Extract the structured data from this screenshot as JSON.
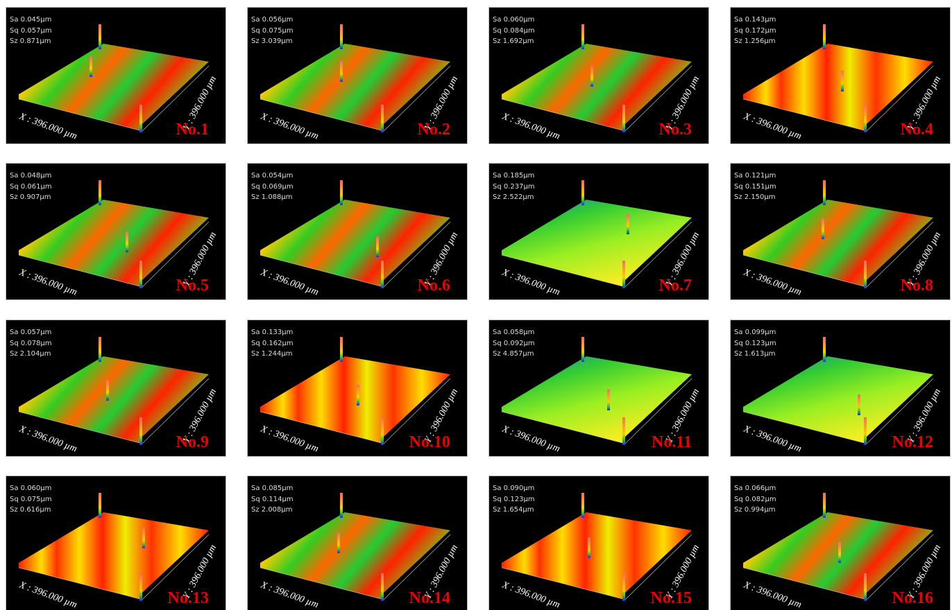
{
  "x_axis_label": "X : 396.000 µm",
  "y_axis_label": "Y : 396.000 µm",
  "panels": [
    {
      "label": "No.1",
      "sa": "Sa 0.045µm",
      "sq": "Sq 0.057µm",
      "sz": "Sz 0.871µm"
    },
    {
      "label": "No.2",
      "sa": "Sa 0.056µm",
      "sq": "Sq 0.075µm",
      "sz": "Sz 3.039µm"
    },
    {
      "label": "No.3",
      "sa": "Sa 0.060µm",
      "sq": "Sq 0.084µm",
      "sz": "Sz 1.692µm"
    },
    {
      "label": "No.4",
      "sa": "Sa 0.143µm",
      "sq": "Sq 0.172µm",
      "sz": "Sz 1.256µm"
    },
    {
      "label": "No.5",
      "sa": "Sa 0.048µm",
      "sq": "Sq 0.061µm",
      "sz": "Sz 0.907µm"
    },
    {
      "label": "No.6",
      "sa": "Sa 0.054µm",
      "sq": "Sq 0.069µm",
      "sz": "Sz 1.088µm"
    },
    {
      "label": "No.7",
      "sa": "Sa 0.185µm",
      "sq": "Sq 0.237µm",
      "sz": "Sz 2.522µm"
    },
    {
      "label": "No.8",
      "sa": "Sa 0.121µm",
      "sq": "Sq 0.151µm",
      "sz": "Sz 2.150µm"
    },
    {
      "label": "No.9",
      "sa": "Sa 0.057µm",
      "sq": "Sq 0.078µm",
      "sz": "Sz 2.104µm"
    },
    {
      "label": "No.10",
      "sa": "Sa 0.133µm",
      "sq": "Sq 0.162µm",
      "sz": "Sz 1.244µm"
    },
    {
      "label": "No.11",
      "sa": "Sa 0.058µm",
      "sq": "Sq 0.092µm",
      "sz": "Sz 4.857µm"
    },
    {
      "label": "No.12",
      "sa": "Sa 0.099µm",
      "sq": "Sq 0.123µm",
      "sz": "Sz 1.613µm"
    },
    {
      "label": "No.13",
      "sa": "Sa 0.060µm",
      "sq": "Sq 0.075µm",
      "sz": "Sz 0.616µm"
    },
    {
      "label": "No.14",
      "sa": "Sa 0.085µm",
      "sq": "Sq 0.114µm",
      "sz": "Sz 2.008µm"
    },
    {
      "label": "No.15",
      "sa": "Sa 0.090µm",
      "sq": "Sq 0.123µm",
      "sz": "Sz 1.654µm"
    },
    {
      "label": "No.16",
      "sa": "Sa 0.066µm",
      "sq": "Sq 0.082µm",
      "sz": "Sz 0.994µm"
    }
  ]
}
